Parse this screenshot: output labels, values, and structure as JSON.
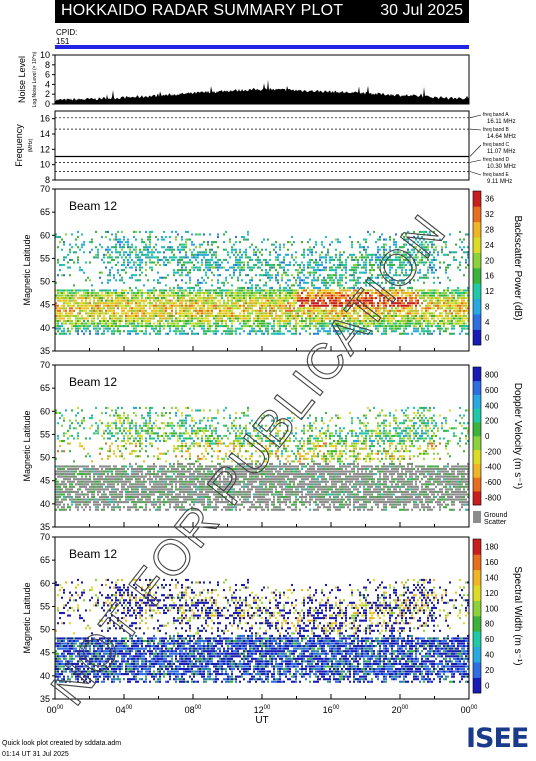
{
  "title": "HOKKAIDO RADAR SUMMARY PLOT",
  "date": "30 Jul 2025",
  "cpid": {
    "label": "CPID:",
    "value": "151"
  },
  "watermark": "NOT FOR PUBLICATION",
  "footer": {
    "line1": "Quick look plot created by sddata.adm",
    "line2": "01:14 UT 31 Jul 2025"
  },
  "logo": "ISEE",
  "colors": {
    "accent": "#2323e6",
    "ground_scatter": "#8c8c8c"
  },
  "chart_data": [
    {
      "type": "area",
      "name": "noise",
      "ylabel": "Noise Level",
      "ylabel_sub": "Log.Noise Level (× 10^n)",
      "ylim": [
        0,
        10
      ],
      "yticks": [
        "0",
        "2",
        "4",
        "6",
        "8",
        "10"
      ],
      "x": [
        0,
        2,
        4,
        6,
        8,
        10,
        12,
        14,
        16,
        18,
        20,
        22,
        24
      ],
      "values": [
        0.8,
        1.0,
        1.3,
        1.7,
        2.2,
        2.7,
        3.0,
        2.8,
        2.5,
        2.2,
        1.8,
        1.4,
        1.0
      ]
    },
    {
      "type": "line",
      "name": "frequency",
      "ylabel": "Frequency",
      "ylabel_unit": "(MHz)",
      "ylim": [
        8,
        17
      ],
      "yticks": [
        "8",
        "10",
        "12",
        "14",
        "16"
      ],
      "bands": [
        {
          "label": "freq band A",
          "value": "16.11 MHz",
          "mhz": 16.11
        },
        {
          "label": "freq band B",
          "value": "14.64 MHz",
          "mhz": 14.64
        },
        {
          "label": "freq band C",
          "value": "11.07 MHz",
          "mhz": 11.07
        },
        {
          "label": "freq band D",
          "value": "10.30 MHz",
          "mhz": 10.3
        },
        {
          "label": "freq band E",
          "value": "9.11 MHz",
          "mhz": 9.11
        }
      ]
    },
    {
      "type": "heatmap",
      "name": "power",
      "beam": "Beam 12",
      "ylabel": "Magnetic Latitude",
      "ylim": [
        35,
        70
      ],
      "yticks": [
        "35",
        "40",
        "45",
        "50",
        "55",
        "60",
        "65",
        "70"
      ],
      "colorbar_label": "Backscatter Power (dB)",
      "colorbar_ticks": [
        "0",
        "4",
        "8",
        "12",
        "16",
        "20",
        "24",
        "28",
        "32",
        "36"
      ],
      "colorbar_colors": [
        "#1a1ab4",
        "#2f6fe0",
        "#2aa8e0",
        "#21c8a8",
        "#3cb43c",
        "#8cd23c",
        "#dcdc28",
        "#f0b428",
        "#e66e1e",
        "#c81e1e"
      ]
    },
    {
      "type": "heatmap",
      "name": "velocity",
      "beam": "Beam 12",
      "ylabel": "Magnetic Latitude",
      "ylim": [
        35,
        70
      ],
      "yticks": [
        "35",
        "40",
        "45",
        "50",
        "55",
        "60",
        "65",
        "70"
      ],
      "colorbar_label": "Doppler Velocity (m s⁻¹)",
      "colorbar_ticks": [
        "-800",
        "-600",
        "-400",
        "-200",
        "0",
        "200",
        "400",
        "600",
        "800"
      ],
      "colorbar_colors": [
        "#c81e1e",
        "#e66e1e",
        "#f0b428",
        "#dcdc28",
        "#8cd23c",
        "#3cb43c",
        "#21c8a8",
        "#2aa8e0",
        "#2f6fe0",
        "#1a1ab4"
      ],
      "ground_scatter_label": "Ground Scatter"
    },
    {
      "type": "heatmap",
      "name": "width",
      "beam": "Beam 12",
      "ylabel": "Magnetic Latitude",
      "ylim": [
        35,
        70
      ],
      "yticks": [
        "35",
        "40",
        "45",
        "50",
        "55",
        "60",
        "65",
        "70"
      ],
      "colorbar_label": "Spectral Width (m s⁻¹)",
      "colorbar_ticks": [
        "0",
        "20",
        "40",
        "60",
        "80",
        "100",
        "120",
        "140",
        "160",
        "180"
      ],
      "colorbar_colors": [
        "#1a1ab4",
        "#2f6fe0",
        "#2aa8e0",
        "#21c8a8",
        "#3cb43c",
        "#8cd23c",
        "#dcdc28",
        "#f0b428",
        "#e66e1e",
        "#c81e1e"
      ],
      "xlabel": "UT",
      "xticks": [
        "00",
        "04",
        "08",
        "12",
        "16",
        "20",
        "00"
      ],
      "xtick_sup": "00"
    }
  ]
}
